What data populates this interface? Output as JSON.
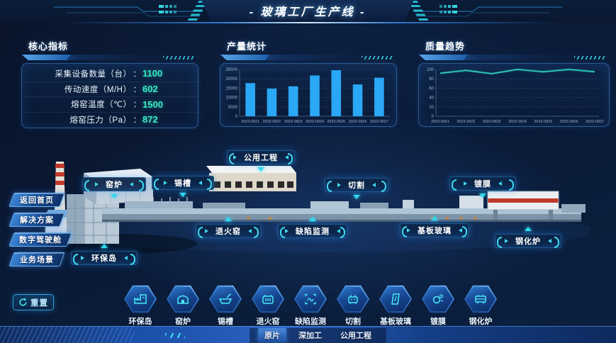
{
  "header": {
    "title": "- 玻璃工厂生产线 -"
  },
  "panels": {
    "core": {
      "title": "核心指标",
      "separator": "：",
      "metrics": [
        {
          "label": "采集设备数量（台）",
          "value": "1100"
        },
        {
          "label": "传动速度（M/H）",
          "value": "602"
        },
        {
          "label": "熔窑温度（℃）",
          "value": "1500"
        },
        {
          "label": "熔窑压力（Pa）",
          "value": "872"
        }
      ]
    },
    "production": {
      "title": "产量统计"
    },
    "quality": {
      "title": "质量趋势"
    }
  },
  "chart_data": [
    {
      "type": "bar",
      "title": "产量统计",
      "categories": [
        "2023-0921",
        "2023-0922",
        "2023-0923",
        "2023-0924",
        "2023-0925",
        "2023-0926",
        "2023-0927"
      ],
      "values": [
        17700,
        14800,
        16000,
        21800,
        24600,
        17000,
        20600
      ],
      "xlabel": "",
      "ylabel": "",
      "ylim": [
        0,
        25000
      ],
      "yticks": [
        0,
        5000,
        10000,
        15000,
        20000,
        25000
      ],
      "bar_color": "#2aa7f5",
      "grid": true,
      "legend": false
    },
    {
      "type": "line",
      "title": "质量趋势",
      "categories": [
        "2023-0921",
        "2023-0922",
        "2023-0923",
        "2023-0924",
        "2023-0925",
        "2023-0926",
        "2023-0927"
      ],
      "values": [
        92,
        98,
        91,
        100,
        95,
        100,
        95
      ],
      "xlabel": "",
      "ylabel": "",
      "ylim": [
        0,
        100
      ],
      "yticks": [
        0,
        20,
        40,
        60,
        80,
        100
      ],
      "line_color": "#2ed0b8",
      "grid": true,
      "legend": false
    }
  ],
  "scene": {
    "labels": [
      {
        "id": "utility",
        "label": "公用工程"
      },
      {
        "id": "kiln",
        "label": "窑炉"
      },
      {
        "id": "tin-bath",
        "label": "锡槽"
      },
      {
        "id": "cutting",
        "label": "切割"
      },
      {
        "id": "coating",
        "label": "镀膜"
      },
      {
        "id": "annealing",
        "label": "退火窑"
      },
      {
        "id": "defect",
        "label": "缺陷监测"
      },
      {
        "id": "substrate",
        "label": "基板玻璃"
      },
      {
        "id": "tempering",
        "label": "钢化炉"
      },
      {
        "id": "eco-island",
        "label": "环保岛"
      }
    ]
  },
  "nav": {
    "buttons": [
      {
        "label": "返回首页"
      },
      {
        "label": "解决方案"
      },
      {
        "label": "数字驾驶舱"
      },
      {
        "label": "业务场景"
      }
    ]
  },
  "reset": {
    "label": "重置",
    "icon": "refresh-icon"
  },
  "process_bar": {
    "items": [
      {
        "icon": "eco-island-icon",
        "label": "环保岛"
      },
      {
        "icon": "kiln-icon",
        "label": "窑炉"
      },
      {
        "icon": "tin-bath-icon",
        "label": "锡槽"
      },
      {
        "icon": "annealing-icon",
        "label": "退火窑"
      },
      {
        "icon": "defect-icon",
        "label": "缺陷监测"
      },
      {
        "icon": "cutting-icon",
        "label": "切割"
      },
      {
        "icon": "substrate-icon",
        "label": "基板玻璃"
      },
      {
        "icon": "coating-icon",
        "label": "镀膜"
      },
      {
        "icon": "tempering-icon",
        "label": "钢化炉"
      }
    ]
  },
  "bottom_tabs": [
    {
      "label": "原片",
      "active": true
    },
    {
      "label": "深加工",
      "active": false
    },
    {
      "label": "公用工程",
      "active": false
    }
  ],
  "colors": {
    "accent": "#35d5e5",
    "value": "#3ae8c6",
    "bar": "#2aa7f5",
    "line": "#2ed0b8"
  }
}
